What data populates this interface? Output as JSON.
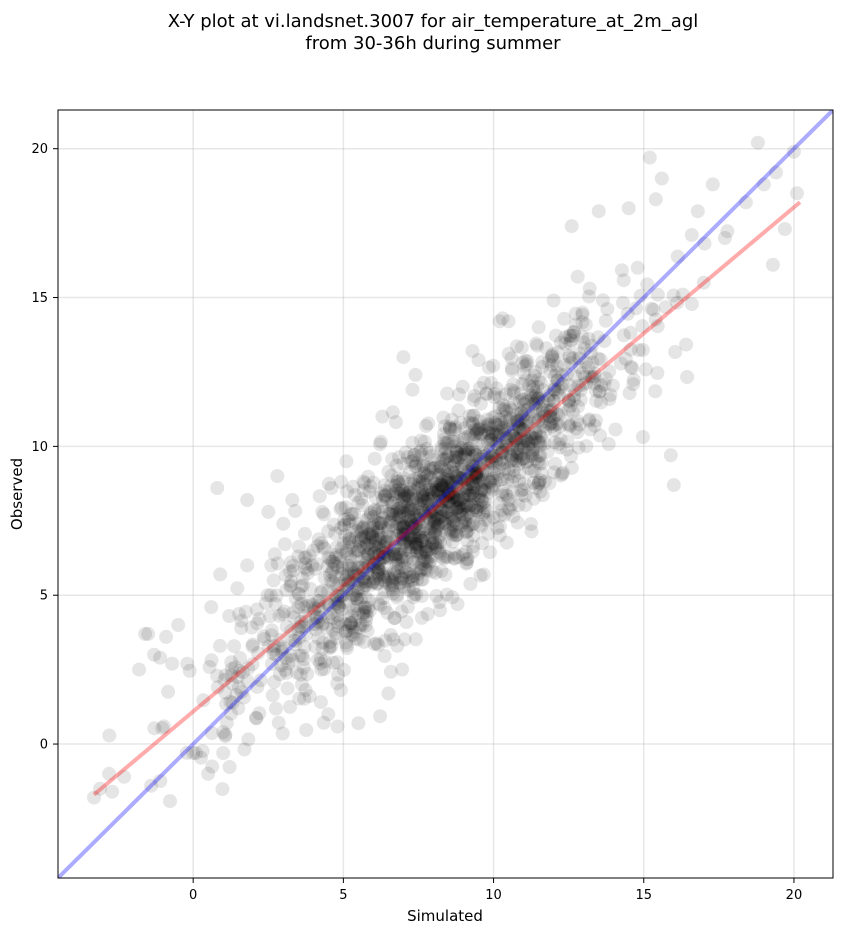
{
  "chart_data": {
    "type": "scatter",
    "title": "X-Y plot at vi.landsnet.3007 for air_temperature_at_2m_agl",
    "subtitle": "from 30-36h during summer",
    "xlabel": "Simulated",
    "ylabel": "Observed",
    "xlim": [
      -4.5,
      21.3
    ],
    "ylim": [
      -4.5,
      21.3
    ],
    "x_ticks": [
      0,
      5,
      10,
      15,
      20
    ],
    "y_ticks": [
      0,
      5,
      10,
      15,
      20
    ],
    "grid": true,
    "legend": "none",
    "point_color": "#000000",
    "point_alpha": 0.1,
    "n_points_approx": 1800,
    "identity_line": {
      "x": [
        -4.5,
        21.3
      ],
      "y": [
        -4.5,
        21.3
      ],
      "color": "#0000ff"
    },
    "regression_line": {
      "x": [
        -3.3,
        20.2
      ],
      "y": [
        -1.7,
        18.2
      ],
      "color": "#ff0000"
    },
    "sample_points": {
      "x": [
        -3.3,
        -3.1,
        -2.8,
        -2.7,
        -2.3,
        -1.8,
        -1.6,
        -1.5,
        -1.4,
        -1.3,
        -1.1,
        -0.9,
        -0.7,
        -0.5,
        -0.2,
        0.0,
        0.5,
        0.6,
        0.8,
        0.9,
        1.0,
        1.0,
        1.2,
        1.5,
        1.6,
        1.8,
        1.8,
        2.2,
        2.5,
        2.6,
        2.8,
        3.0,
        3.3,
        3.5,
        3.6,
        4.0,
        4.3,
        4.5,
        4.6,
        4.9,
        5.1,
        5.5,
        6.3,
        6.5,
        7.0,
        7.1,
        7.3,
        7.4,
        7.6,
        8.8,
        9.3,
        9.5,
        10.2,
        10.3,
        10.5,
        11.5,
        12.0,
        12.6,
        12.8,
        13.2,
        13.5,
        14.5,
        14.8,
        15.2,
        15.4,
        15.6,
        15.9,
        16.0,
        16.3,
        16.6,
        16.8,
        17.0,
        17.3,
        17.7,
        18.4,
        18.8,
        19.0,
        19.3,
        19.4,
        19.7,
        20.0,
        20.1
      ],
      "y": [
        -1.8,
        -1.5,
        -1.0,
        -1.6,
        -1.1,
        2.5,
        3.7,
        3.7,
        -1.4,
        3.0,
        2.9,
        3.6,
        2.7,
        4.0,
        2.7,
        -0.3,
        -1.0,
        4.6,
        8.6,
        5.7,
        -0.3,
        0.4,
        4.3,
        1.2,
        3.9,
        6.0,
        8.2,
        4.2,
        7.8,
        6.0,
        9.0,
        7.4,
        8.2,
        6.3,
        5.3,
        6.5,
        7.8,
        1.0,
        8.6,
        7.9,
        9.5,
        0.7,
        11.0,
        1.7,
        13.0,
        4.1,
        11.9,
        12.4,
        6.3,
        4.7,
        13.2,
        12.9,
        14.2,
        14.3,
        14.2,
        10.9,
        14.9,
        17.4,
        15.7,
        15.3,
        17.9,
        18.0,
        16.0,
        19.7,
        18.3,
        19.0,
        9.7,
        8.7,
        15.1,
        17.1,
        17.9,
        15.5,
        18.8,
        17.0,
        18.2,
        20.2,
        18.8,
        16.1,
        19.2,
        17.3,
        19.9,
        18.5
      ]
    }
  }
}
